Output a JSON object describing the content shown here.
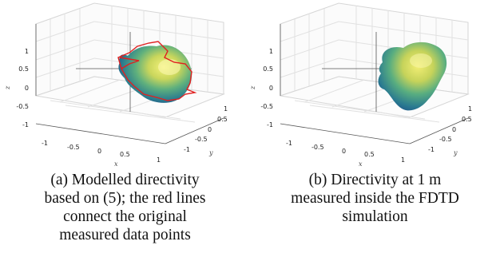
{
  "figures": [
    {
      "id": "a",
      "axis_labels": {
        "x": "x",
        "y": "y",
        "z": "z"
      },
      "x_ticks": [
        "-1",
        "-0.5",
        "0",
        "0.5",
        "1"
      ],
      "y_ticks": [
        "1",
        "0.5",
        "0",
        "-0.5",
        "-1"
      ],
      "z_ticks": [
        "1",
        "0.5",
        "0",
        "-0.5",
        "-1"
      ],
      "has_red_lines": true,
      "caption_lines": [
        "(a) Modelled directivity",
        "based on (5); the red lines",
        "connect the original",
        "measured data points"
      ]
    },
    {
      "id": "b",
      "axis_labels": {
        "x": "x",
        "y": "y",
        "z": "z"
      },
      "x_ticks": [
        "-1",
        "-0.5",
        "0",
        "0.5",
        "1"
      ],
      "y_ticks": [
        "1",
        "0.5",
        "0",
        "-0.5",
        "-1"
      ],
      "z_ticks": [
        "1",
        "0.5",
        "0",
        "-0.5",
        "-1"
      ],
      "has_red_lines": false,
      "caption_lines": [
        "(b) Directivity at 1 m",
        "measured inside the FDTD",
        "simulation"
      ]
    }
  ],
  "colors": {
    "red_lines": "#e02020",
    "surface_dark": "#1f4f8a",
    "surface_mid": "#3fa38a",
    "surface_light": "#e8e35a"
  }
}
